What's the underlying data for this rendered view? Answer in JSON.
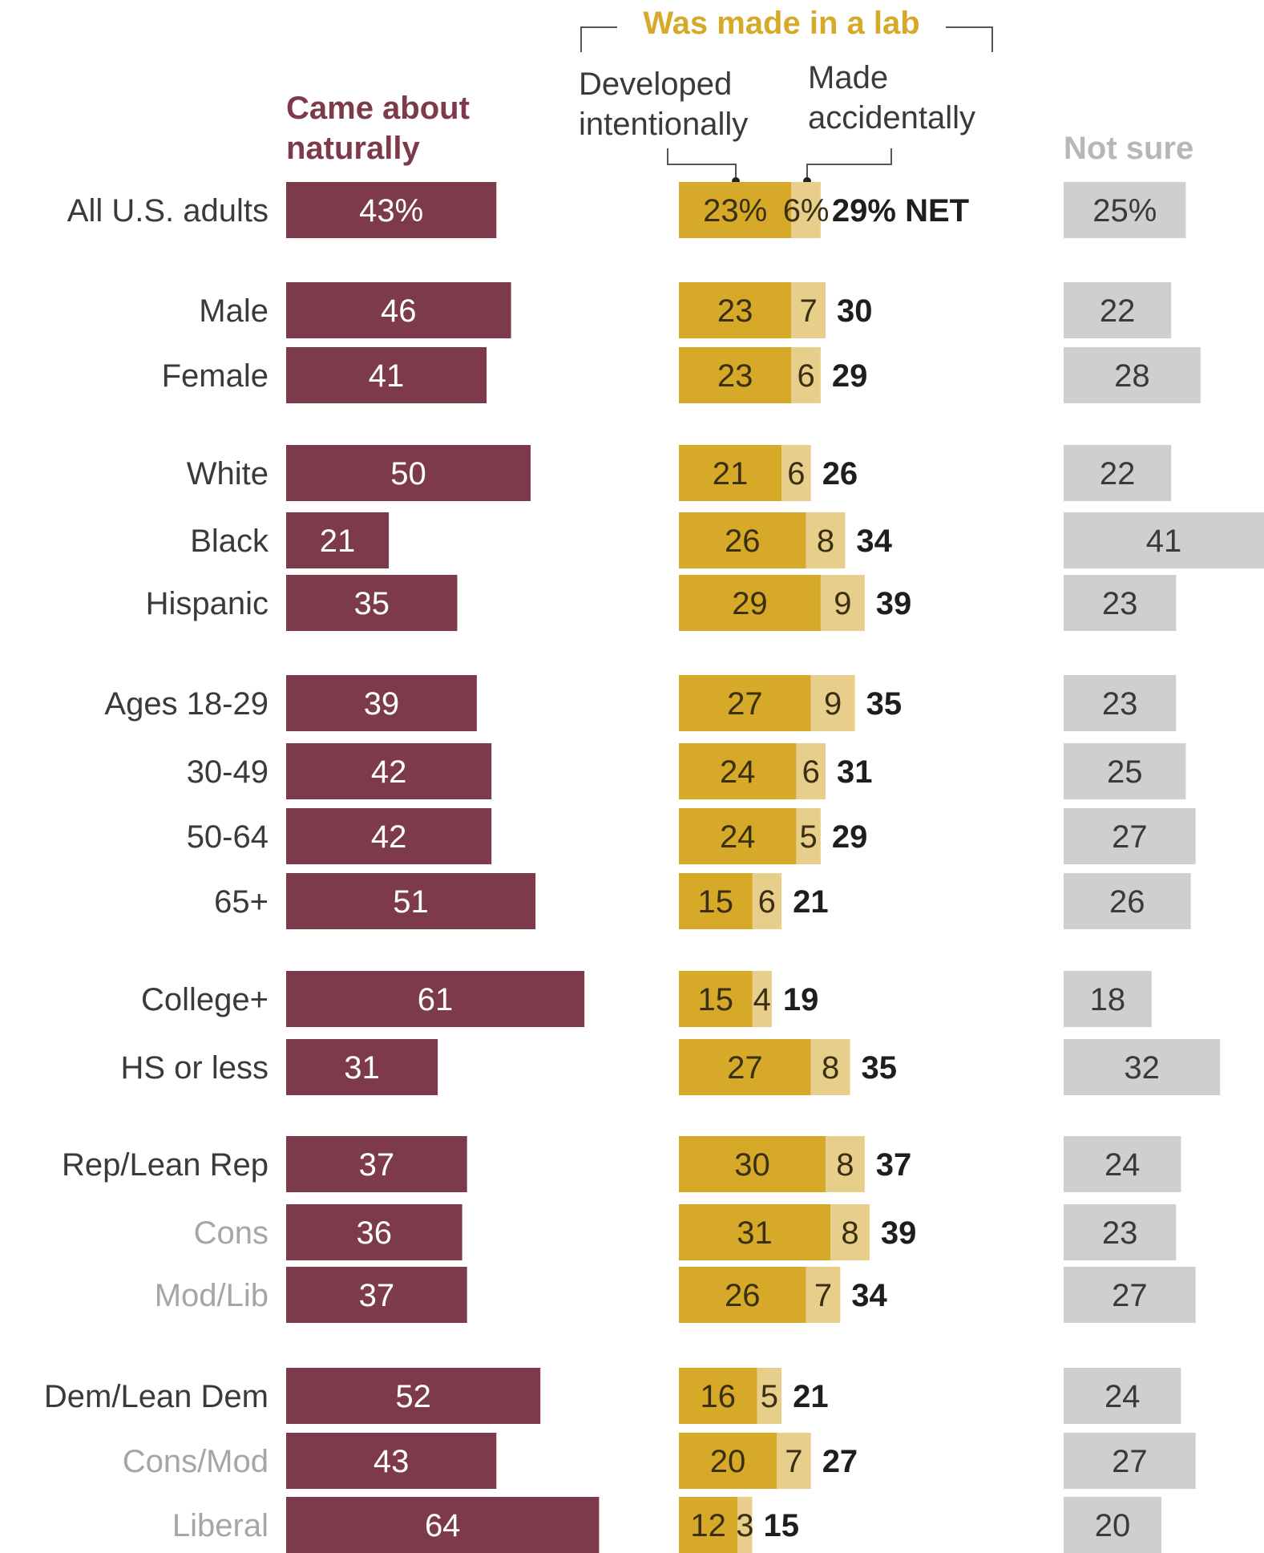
{
  "headers": {
    "naturally": [
      "Came about",
      "naturally"
    ],
    "lab": "Was made in a lab",
    "intentional": [
      "Developed",
      "intentionally"
    ],
    "accidental": [
      "Made",
      "accidentally"
    ],
    "not_sure": "Not sure"
  },
  "colors": {
    "naturally": "#7c3a4a",
    "intentional": "#d6a928",
    "accidental": "#e7cf8b",
    "not_sure": "#cfcfcf",
    "lab_header": "#d6a928",
    "not_sure_header": "#b7b7b7",
    "naturally_text": "#ffffff",
    "intentional_text": "#3a2f10",
    "accidental_text": "#3a2f10",
    "not_sure_text": "#3a3a3a"
  },
  "chart_data": {
    "type": "bar",
    "categories": [
      "All U.S. adults",
      "Male",
      "Female",
      "White",
      "Black",
      "Hispanic",
      "Ages 18-29",
      "30-49",
      "50-64",
      "65+",
      "College+",
      "HS or less",
      "Rep/Lean Rep",
      "Cons",
      "Mod/Lib",
      "Dem/Lean Dem",
      "Cons/Mod",
      "Liberal"
    ],
    "subgroups": [
      "Cons",
      "Mod/Lib",
      "Cons/Mod",
      "Liberal"
    ],
    "series": [
      {
        "name": "Came about naturally",
        "values": [
          43,
          46,
          41,
          50,
          21,
          35,
          39,
          42,
          42,
          51,
          61,
          31,
          37,
          36,
          37,
          52,
          43,
          64
        ]
      },
      {
        "name": "Developed intentionally",
        "values": [
          23,
          23,
          23,
          21,
          26,
          29,
          27,
          24,
          24,
          15,
          15,
          27,
          30,
          31,
          26,
          16,
          20,
          12
        ]
      },
      {
        "name": "Made accidentally",
        "values": [
          6,
          7,
          6,
          6,
          8,
          9,
          9,
          6,
          5,
          6,
          4,
          8,
          8,
          8,
          7,
          5,
          7,
          3
        ]
      },
      {
        "name": "Not sure",
        "values": [
          25,
          22,
          28,
          22,
          41,
          23,
          23,
          25,
          27,
          26,
          18,
          32,
          24,
          23,
          27,
          24,
          27,
          20
        ]
      }
    ],
    "net": [
      29,
      30,
      29,
      26,
      34,
      39,
      35,
      31,
      29,
      21,
      19,
      35,
      37,
      39,
      34,
      21,
      27,
      15
    ],
    "net_suffix": "NET",
    "first_row_percent": true
  }
}
